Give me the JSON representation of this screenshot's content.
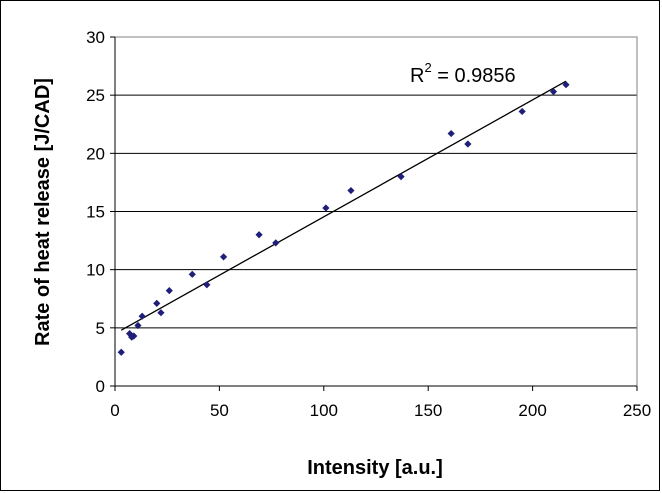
{
  "chart_data": {
    "type": "scatter",
    "title": "",
    "xlabel": "Intensity [a.u.]",
    "ylabel": "Rate of heat release [J/CAD]",
    "xlim": [
      0,
      250
    ],
    "ylim": [
      0,
      30
    ],
    "x_ticks": [
      "0",
      "50",
      "100",
      "150",
      "200",
      "250"
    ],
    "y_ticks": [
      "0",
      "5",
      "10",
      "15",
      "20",
      "25",
      "30"
    ],
    "grid": "horizontal major gridlines",
    "legend": "none",
    "marker": "diamond",
    "marker_color": "#1f1f7a",
    "trendline": {
      "type": "linear",
      "x": [
        3,
        216
      ],
      "y": [
        4.8,
        26.2
      ],
      "r2_label_base": "R",
      "r2_label_exp": "2",
      "r2_label_value": " = 0.9856"
    },
    "series": [
      {
        "x": [
          3,
          7,
          8,
          9,
          11,
          13,
          20,
          22,
          26,
          37,
          44,
          52,
          69,
          77,
          101,
          113,
          137,
          161,
          169,
          195,
          210,
          216
        ],
        "y": [
          2.9,
          4.5,
          4.2,
          4.3,
          5.2,
          6.0,
          7.1,
          6.3,
          8.2,
          9.6,
          8.7,
          11.1,
          13.0,
          12.3,
          15.3,
          16.8,
          18.0,
          21.7,
          20.8,
          23.6,
          25.3,
          25.9
        ]
      }
    ]
  }
}
